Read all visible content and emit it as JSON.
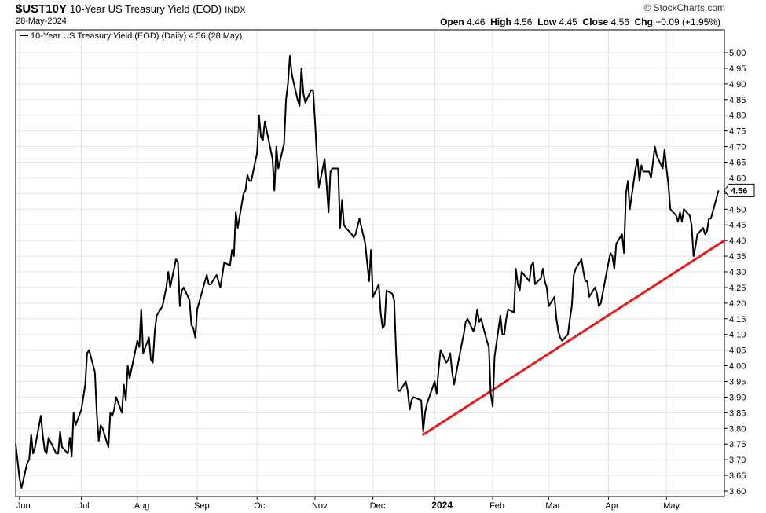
{
  "header": {
    "symbol": "$UST10Y",
    "name": "10-Year US Treasury Yield (EOD)",
    "exchange": "INDX",
    "date": "28-May-2024",
    "watermark": "© StockCharts.com",
    "open_label": "Open",
    "open": "4.46",
    "high_label": "High",
    "high": "4.56",
    "low_label": "Low",
    "low": "4.45",
    "close_label": "Close",
    "close": "4.56",
    "chg_label": "Chg",
    "chg": "+0.09 (+1.95%)"
  },
  "colors": {
    "series": "#000000",
    "trendline": "#e8191a",
    "grid": "#e3e3e3",
    "frame": "#000000"
  },
  "chart_data": {
    "type": "line",
    "legend": "10-Year US Treasury Yield (EOD) (Daily) 4.56 (28 May)",
    "legend_placement": "top-left",
    "last_value_label": "4.56",
    "xlabel": "",
    "ylabel": "",
    "ylim": [
      3.6,
      5.0
    ],
    "yticks": [
      "5.00",
      "4.95",
      "4.90",
      "4.85",
      "4.80",
      "4.75",
      "4.70",
      "4.65",
      "4.60",
      "4.55",
      "4.50",
      "4.45",
      "4.40",
      "4.35",
      "4.30",
      "4.25",
      "4.20",
      "4.15",
      "4.10",
      "4.05",
      "4.00",
      "3.95",
      "3.90",
      "3.85",
      "3.80",
      "3.75",
      "3.70",
      "3.65",
      "3.60"
    ],
    "xticks": [
      {
        "label": "Jun",
        "date": "2023-06-01",
        "bold": false
      },
      {
        "label": "Jul",
        "date": "2023-07-03",
        "bold": false
      },
      {
        "label": "Aug",
        "date": "2023-08-01",
        "bold": false
      },
      {
        "label": "Sep",
        "date": "2023-09-01",
        "bold": false
      },
      {
        "label": "Oct",
        "date": "2023-10-02",
        "bold": false
      },
      {
        "label": "Nov",
        "date": "2023-11-01",
        "bold": false
      },
      {
        "label": "Dec",
        "date": "2023-12-01",
        "bold": false
      },
      {
        "label": "2024",
        "date": "2024-01-02",
        "bold": true
      },
      {
        "label": "Feb",
        "date": "2024-02-01",
        "bold": false
      },
      {
        "label": "Mar",
        "date": "2024-03-01",
        "bold": false
      },
      {
        "label": "Apr",
        "date": "2024-04-01",
        "bold": false
      },
      {
        "label": "May",
        "date": "2024-05-01",
        "bold": false
      }
    ],
    "grid": true,
    "x_range": [
      "2023-05-30",
      "2024-05-31"
    ],
    "series": [
      {
        "name": "10-Year US Treasury Yield (EOD)",
        "points": [
          [
            "2023-05-30",
            3.75
          ],
          [
            "2023-06-01",
            3.64
          ],
          [
            "2023-06-02",
            3.61
          ],
          [
            "2023-06-05",
            3.69
          ],
          [
            "2023-06-06",
            3.7
          ],
          [
            "2023-06-07",
            3.78
          ],
          [
            "2023-06-08",
            3.72
          ],
          [
            "2023-06-09",
            3.74
          ],
          [
            "2023-06-12",
            3.84
          ],
          [
            "2023-06-13",
            3.78
          ],
          [
            "2023-06-14",
            3.73
          ],
          [
            "2023-06-15",
            3.72
          ],
          [
            "2023-06-16",
            3.77
          ],
          [
            "2023-06-20",
            3.72
          ],
          [
            "2023-06-21",
            3.72
          ],
          [
            "2023-06-22",
            3.79
          ],
          [
            "2023-06-23",
            3.74
          ],
          [
            "2023-06-26",
            3.72
          ],
          [
            "2023-06-27",
            3.77
          ],
          [
            "2023-06-28",
            3.71
          ],
          [
            "2023-06-29",
            3.85
          ],
          [
            "2023-06-30",
            3.81
          ],
          [
            "2023-07-03",
            3.86
          ],
          [
            "2023-07-05",
            3.94
          ],
          [
            "2023-07-06",
            4.04
          ],
          [
            "2023-07-07",
            4.05
          ],
          [
            "2023-07-10",
            3.98
          ],
          [
            "2023-07-11",
            3.85
          ],
          [
            "2023-07-12",
            3.76
          ],
          [
            "2023-07-13",
            3.81
          ],
          [
            "2023-07-14",
            3.8
          ],
          [
            "2023-07-17",
            3.74
          ],
          [
            "2023-07-18",
            3.85
          ],
          [
            "2023-07-19",
            3.84
          ],
          [
            "2023-07-20",
            3.86
          ],
          [
            "2023-07-21",
            3.9
          ],
          [
            "2023-07-24",
            3.85
          ],
          [
            "2023-07-25",
            3.94
          ],
          [
            "2023-07-26",
            3.89
          ],
          [
            "2023-07-27",
            4.0
          ],
          [
            "2023-07-28",
            3.96
          ],
          [
            "2023-07-31",
            4.05
          ],
          [
            "2023-08-01",
            4.08
          ],
          [
            "2023-08-02",
            4.06
          ],
          [
            "2023-08-03",
            4.18
          ],
          [
            "2023-08-04",
            4.04
          ],
          [
            "2023-08-07",
            4.09
          ],
          [
            "2023-08-08",
            4.02
          ],
          [
            "2023-08-09",
            4.01
          ],
          [
            "2023-08-10",
            4.11
          ],
          [
            "2023-08-11",
            4.16
          ],
          [
            "2023-08-14",
            4.19
          ],
          [
            "2023-08-15",
            4.22
          ],
          [
            "2023-08-16",
            4.25
          ],
          [
            "2023-08-17",
            4.3
          ],
          [
            "2023-08-18",
            4.25
          ],
          [
            "2023-08-21",
            4.34
          ],
          [
            "2023-08-22",
            4.33
          ],
          [
            "2023-08-23",
            4.19
          ],
          [
            "2023-08-24",
            4.24
          ],
          [
            "2023-08-25",
            4.25
          ],
          [
            "2023-08-28",
            4.21
          ],
          [
            "2023-08-29",
            4.13
          ],
          [
            "2023-08-30",
            4.12
          ],
          [
            "2023-08-31",
            4.09
          ],
          [
            "2023-09-01",
            4.18
          ],
          [
            "2023-09-05",
            4.27
          ],
          [
            "2023-09-06",
            4.29
          ],
          [
            "2023-09-07",
            4.26
          ],
          [
            "2023-09-08",
            4.26
          ],
          [
            "2023-09-11",
            4.29
          ],
          [
            "2023-09-12",
            4.27
          ],
          [
            "2023-09-13",
            4.25
          ],
          [
            "2023-09-14",
            4.29
          ],
          [
            "2023-09-15",
            4.33
          ],
          [
            "2023-09-18",
            4.32
          ],
          [
            "2023-09-19",
            4.37
          ],
          [
            "2023-09-20",
            4.35
          ],
          [
            "2023-09-21",
            4.49
          ],
          [
            "2023-09-22",
            4.44
          ],
          [
            "2023-09-25",
            4.55
          ],
          [
            "2023-09-26",
            4.56
          ],
          [
            "2023-09-27",
            4.61
          ],
          [
            "2023-09-28",
            4.59
          ],
          [
            "2023-09-29",
            4.59
          ],
          [
            "2023-10-02",
            4.68
          ],
          [
            "2023-10-03",
            4.8
          ],
          [
            "2023-10-04",
            4.73
          ],
          [
            "2023-10-05",
            4.72
          ],
          [
            "2023-10-06",
            4.78
          ],
          [
            "2023-10-10",
            4.66
          ],
          [
            "2023-10-11",
            4.56
          ],
          [
            "2023-10-12",
            4.7
          ],
          [
            "2023-10-13",
            4.63
          ],
          [
            "2023-10-16",
            4.71
          ],
          [
            "2023-10-17",
            4.85
          ],
          [
            "2023-10-18",
            4.9
          ],
          [
            "2023-10-19",
            4.99
          ],
          [
            "2023-10-20",
            4.93
          ],
          [
            "2023-10-23",
            4.85
          ],
          [
            "2023-10-24",
            4.83
          ],
          [
            "2023-10-25",
            4.95
          ],
          [
            "2023-10-26",
            4.87
          ],
          [
            "2023-10-27",
            4.84
          ],
          [
            "2023-10-30",
            4.88
          ],
          [
            "2023-10-31",
            4.88
          ],
          [
            "2023-11-01",
            4.78
          ],
          [
            "2023-11-02",
            4.67
          ],
          [
            "2023-11-03",
            4.57
          ],
          [
            "2023-11-06",
            4.66
          ],
          [
            "2023-11-07",
            4.58
          ],
          [
            "2023-11-08",
            4.49
          ],
          [
            "2023-11-09",
            4.62
          ],
          [
            "2023-11-10",
            4.63
          ],
          [
            "2023-11-13",
            4.63
          ],
          [
            "2023-11-14",
            4.44
          ],
          [
            "2023-11-15",
            4.53
          ],
          [
            "2023-11-16",
            4.45
          ],
          [
            "2023-11-17",
            4.44
          ],
          [
            "2023-11-20",
            4.42
          ],
          [
            "2023-11-21",
            4.41
          ],
          [
            "2023-11-22",
            4.42
          ],
          [
            "2023-11-24",
            4.47
          ],
          [
            "2023-11-27",
            4.39
          ],
          [
            "2023-11-28",
            4.33
          ],
          [
            "2023-11-29",
            4.27
          ],
          [
            "2023-11-30",
            4.37
          ],
          [
            "2023-12-01",
            4.22
          ],
          [
            "2023-12-04",
            4.26
          ],
          [
            "2023-12-05",
            4.17
          ],
          [
            "2023-12-06",
            4.12
          ],
          [
            "2023-12-07",
            4.13
          ],
          [
            "2023-12-08",
            4.24
          ],
          [
            "2023-12-11",
            4.23
          ],
          [
            "2023-12-12",
            4.21
          ],
          [
            "2023-12-13",
            4.04
          ],
          [
            "2023-12-14",
            3.92
          ],
          [
            "2023-12-15",
            3.92
          ],
          [
            "2023-12-18",
            3.95
          ],
          [
            "2023-12-19",
            3.92
          ],
          [
            "2023-12-20",
            3.86
          ],
          [
            "2023-12-21",
            3.89
          ],
          [
            "2023-12-22",
            3.9
          ],
          [
            "2023-12-26",
            3.89
          ],
          [
            "2023-12-27",
            3.79
          ],
          [
            "2023-12-28",
            3.85
          ],
          [
            "2023-12-29",
            3.88
          ],
          [
            "2024-01-02",
            3.95
          ],
          [
            "2024-01-03",
            3.91
          ],
          [
            "2024-01-04",
            3.99
          ],
          [
            "2024-01-05",
            4.05
          ],
          [
            "2024-01-08",
            4.01
          ],
          [
            "2024-01-09",
            4.02
          ],
          [
            "2024-01-10",
            4.04
          ],
          [
            "2024-01-11",
            3.98
          ],
          [
            "2024-01-12",
            3.94
          ],
          [
            "2024-01-16",
            4.07
          ],
          [
            "2024-01-17",
            4.1
          ],
          [
            "2024-01-18",
            4.14
          ],
          [
            "2024-01-19",
            4.15
          ],
          [
            "2024-01-22",
            4.11
          ],
          [
            "2024-01-23",
            4.13
          ],
          [
            "2024-01-24",
            4.18
          ],
          [
            "2024-01-25",
            4.14
          ],
          [
            "2024-01-26",
            4.15
          ],
          [
            "2024-01-29",
            4.08
          ],
          [
            "2024-01-30",
            4.06
          ],
          [
            "2024-01-31",
            3.91
          ],
          [
            "2024-02-01",
            3.87
          ],
          [
            "2024-02-02",
            4.03
          ],
          [
            "2024-02-05",
            4.16
          ],
          [
            "2024-02-06",
            4.1
          ],
          [
            "2024-02-07",
            4.1
          ],
          [
            "2024-02-08",
            4.15
          ],
          [
            "2024-02-09",
            4.18
          ],
          [
            "2024-02-12",
            4.17
          ],
          [
            "2024-02-13",
            4.31
          ],
          [
            "2024-02-14",
            4.26
          ],
          [
            "2024-02-15",
            4.24
          ],
          [
            "2024-02-16",
            4.3
          ],
          [
            "2024-02-20",
            4.27
          ],
          [
            "2024-02-21",
            4.32
          ],
          [
            "2024-02-22",
            4.33
          ],
          [
            "2024-02-23",
            4.26
          ],
          [
            "2024-02-26",
            4.28
          ],
          [
            "2024-02-27",
            4.31
          ],
          [
            "2024-02-28",
            4.27
          ],
          [
            "2024-02-29",
            4.25
          ],
          [
            "2024-03-01",
            4.19
          ],
          [
            "2024-03-04",
            4.22
          ],
          [
            "2024-03-05",
            4.15
          ],
          [
            "2024-03-06",
            4.11
          ],
          [
            "2024-03-07",
            4.09
          ],
          [
            "2024-03-08",
            4.08
          ],
          [
            "2024-03-11",
            4.1
          ],
          [
            "2024-03-12",
            4.15
          ],
          [
            "2024-03-13",
            4.19
          ],
          [
            "2024-03-14",
            4.29
          ],
          [
            "2024-03-15",
            4.31
          ],
          [
            "2024-03-18",
            4.34
          ],
          [
            "2024-03-19",
            4.3
          ],
          [
            "2024-03-20",
            4.27
          ],
          [
            "2024-03-21",
            4.27
          ],
          [
            "2024-03-22",
            4.22
          ],
          [
            "2024-03-25",
            4.25
          ],
          [
            "2024-03-26",
            4.23
          ],
          [
            "2024-03-27",
            4.19
          ],
          [
            "2024-03-28",
            4.2
          ],
          [
            "2024-04-01",
            4.33
          ],
          [
            "2024-04-02",
            4.36
          ],
          [
            "2024-04-03",
            4.35
          ],
          [
            "2024-04-04",
            4.31
          ],
          [
            "2024-04-05",
            4.39
          ],
          [
            "2024-04-08",
            4.42
          ],
          [
            "2024-04-09",
            4.36
          ],
          [
            "2024-04-10",
            4.55
          ],
          [
            "2024-04-11",
            4.59
          ],
          [
            "2024-04-12",
            4.5
          ],
          [
            "2024-04-15",
            4.63
          ],
          [
            "2024-04-16",
            4.66
          ],
          [
            "2024-04-17",
            4.59
          ],
          [
            "2024-04-18",
            4.64
          ],
          [
            "2024-04-19",
            4.62
          ],
          [
            "2024-04-22",
            4.62
          ],
          [
            "2024-04-23",
            4.6
          ],
          [
            "2024-04-24",
            4.65
          ],
          [
            "2024-04-25",
            4.7
          ],
          [
            "2024-04-26",
            4.67
          ],
          [
            "2024-04-29",
            4.63
          ],
          [
            "2024-04-30",
            4.69
          ],
          [
            "2024-05-01",
            4.63
          ],
          [
            "2024-05-02",
            4.58
          ],
          [
            "2024-05-03",
            4.5
          ],
          [
            "2024-05-06",
            4.48
          ],
          [
            "2024-05-07",
            4.46
          ],
          [
            "2024-05-08",
            4.49
          ],
          [
            "2024-05-09",
            4.46
          ],
          [
            "2024-05-10",
            4.5
          ],
          [
            "2024-05-13",
            4.48
          ],
          [
            "2024-05-14",
            4.45
          ],
          [
            "2024-05-15",
            4.35
          ],
          [
            "2024-05-16",
            4.38
          ],
          [
            "2024-05-17",
            4.42
          ],
          [
            "2024-05-20",
            4.44
          ],
          [
            "2024-05-21",
            4.42
          ],
          [
            "2024-05-22",
            4.43
          ],
          [
            "2024-05-23",
            4.47
          ],
          [
            "2024-05-24",
            4.47
          ],
          [
            "2024-05-28",
            4.56
          ]
        ]
      }
    ],
    "trendline": {
      "from": [
        "2023-12-27",
        3.78
      ],
      "to": [
        "2024-05-31",
        4.4
      ]
    }
  }
}
